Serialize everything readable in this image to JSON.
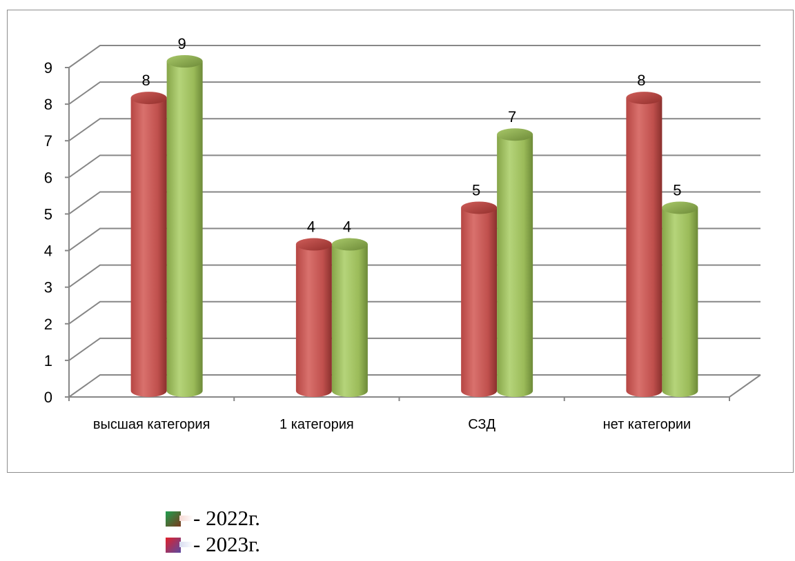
{
  "chart_data": {
    "type": "bar",
    "categories": [
      "высшая категория",
      "1 категория",
      "СЗД",
      "нет категории"
    ],
    "series": [
      {
        "name": "2023г.",
        "values": [
          8,
          4,
          5,
          8
        ],
        "color": "#c0504d"
      },
      {
        "name": "2022г.",
        "values": [
          9,
          4,
          7,
          5
        ],
        "color": "#9bbb59"
      }
    ],
    "ylim": [
      0,
      9
    ],
    "yticks": [
      "0",
      "1",
      "2",
      "3",
      "4",
      "5",
      "6",
      "7",
      "8",
      "9"
    ],
    "grid": true,
    "style": "3d-cylinder"
  },
  "legend": [
    {
      "label": "- 2022г.",
      "swatch_colors": [
        "#1e9e4e",
        "#7a3a1e"
      ]
    },
    {
      "label": "- 2023г.",
      "swatch_colors": [
        "#e0202a",
        "#5a4aa0"
      ]
    }
  ]
}
